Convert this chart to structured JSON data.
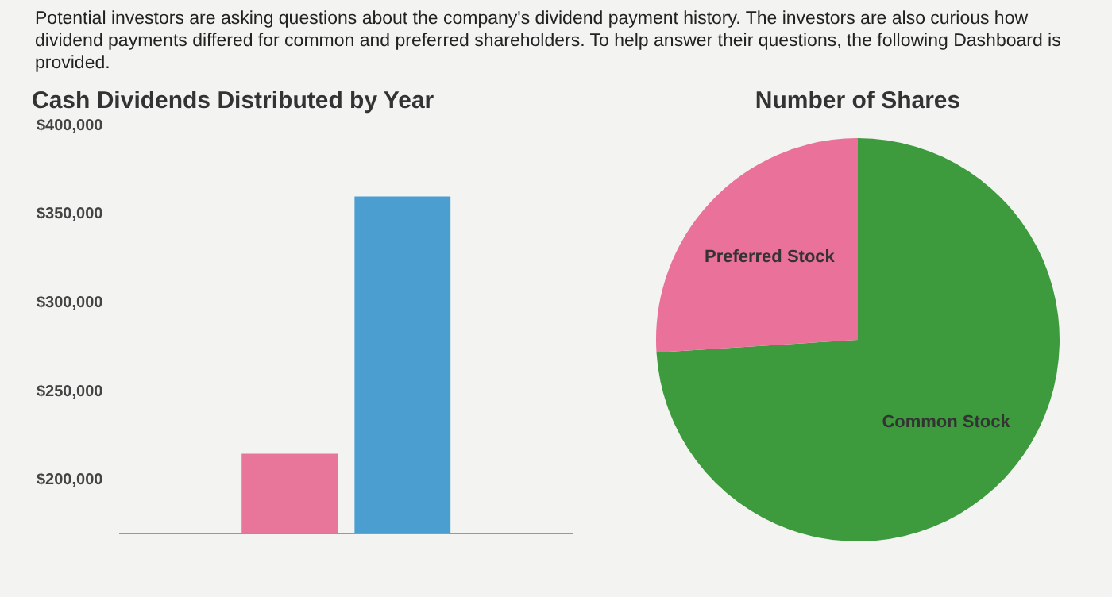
{
  "chart_data": [
    {
      "type": "other",
      "annotations": [
        "Potential investors are asking questions about the company's dividend payment history. The investors are also curious how dividend payments differed for common and preferred shareholders. To help answer their questions, the following Dashboard is provided."
      ]
    },
    {
      "type": "bar",
      "title": "Cash Dividends Distributed by Year",
      "categories": [
        null
      ],
      "series": [
        {
          "color": "#e8769a",
          "values": [
            215000
          ]
        },
        {
          "color": "#4a9fd0",
          "values": [
            360000
          ]
        }
      ],
      "ylim": [
        170000,
        400000
      ],
      "yticks": [
        {
          "value": 200000,
          "label": "$200,000"
        },
        {
          "value": 250000,
          "label": "$250,000"
        },
        {
          "value": 300000,
          "label": "$300,000"
        },
        {
          "value": 350000,
          "label": "$350,000"
        },
        {
          "value": 400000,
          "label": "$400,000"
        }
      ],
      "grid": false,
      "legend": false,
      "tick_labels": "y"
    },
    {
      "type": "pie",
      "title": "Number of Shares",
      "categories": [
        "Common Stock",
        "Preferred Stock"
      ],
      "values": [
        74,
        26
      ],
      "colors": [
        "#3d9a3d",
        "#ea7199"
      ],
      "legend": false
    }
  ]
}
